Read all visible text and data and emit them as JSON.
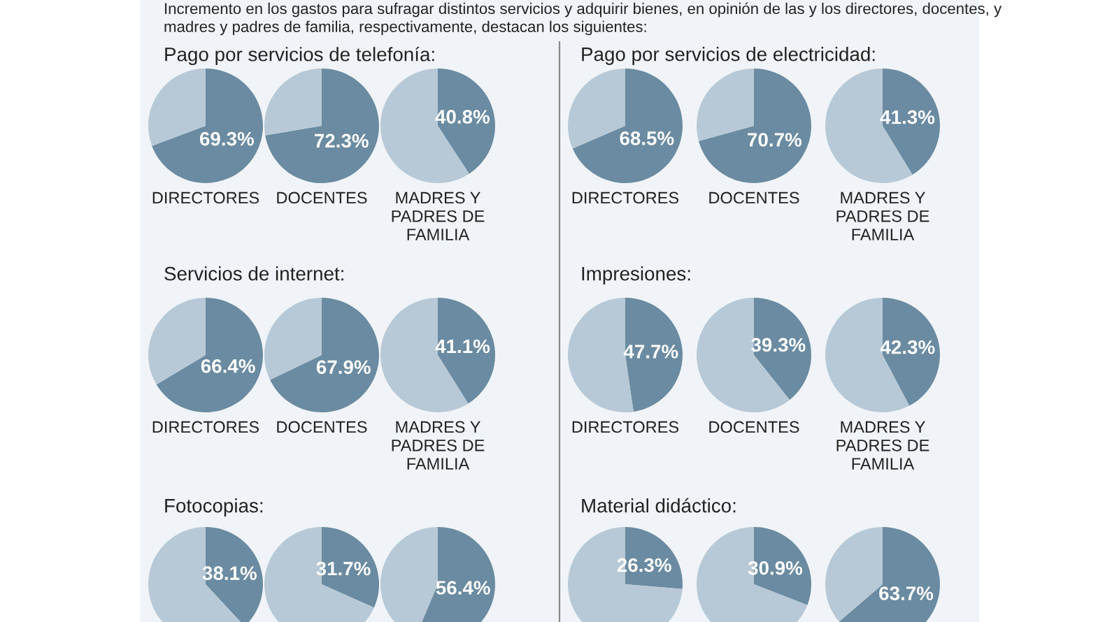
{
  "chart_data": [
    {
      "type": "other",
      "annotations": [
        "Incremento en los gastos para sufragar distintos servicios y adquirir bienes, en opinión de las y los directores, docentes, y",
        "madres y padres de familia, respectivamente, destacan los siguientes:"
      ]
    },
    {
      "type": "other",
      "title": "Pago por servicios de telefonía:"
    },
    {
      "type": "pie",
      "categories": [
        null,
        null
      ],
      "values": [
        69.3,
        30.7
      ],
      "colors": [
        "#6a8ba1",
        "#b7c9d6"
      ],
      "value_labels": [
        "69.3%",
        null
      ],
      "xlabel": "DIRECTORES"
    },
    {
      "type": "pie",
      "categories": [
        null,
        null
      ],
      "values": [
        72.3,
        27.7
      ],
      "colors": [
        "#6a8ba1",
        "#b7c9d6"
      ],
      "value_labels": [
        "72.3%",
        null
      ],
      "xlabel": "DOCENTES"
    },
    {
      "type": "pie",
      "categories": [
        null,
        null
      ],
      "values": [
        40.8,
        59.2
      ],
      "colors": [
        "#6a8ba1",
        "#b7c9d6"
      ],
      "value_labels": [
        "40.8%",
        null
      ],
      "xlabel": "MADRES Y\nPADRES DE\nFAMILIA"
    },
    {
      "type": "other",
      "title": "Pago por servicios de electricidad:"
    },
    {
      "type": "pie",
      "categories": [
        null,
        null
      ],
      "values": [
        68.5,
        31.5
      ],
      "colors": [
        "#6a8ba1",
        "#b7c9d6"
      ],
      "value_labels": [
        "68.5%",
        null
      ],
      "xlabel": "DIRECTORES"
    },
    {
      "type": "pie",
      "categories": [
        null,
        null
      ],
      "values": [
        70.7,
        29.3
      ],
      "colors": [
        "#6a8ba1",
        "#b7c9d6"
      ],
      "value_labels": [
        "70.7%",
        null
      ],
      "xlabel": "DOCENTES"
    },
    {
      "type": "pie",
      "categories": [
        null,
        null
      ],
      "values": [
        41.3,
        58.7
      ],
      "colors": [
        "#6a8ba1",
        "#b7c9d6"
      ],
      "value_labels": [
        "41.3%",
        null
      ],
      "xlabel": "MADRES Y\nPADRES DE\nFAMILIA"
    },
    {
      "type": "other",
      "title": "Servicios de internet:"
    },
    {
      "type": "pie",
      "categories": [
        null,
        null
      ],
      "values": [
        66.4,
        33.6
      ],
      "colors": [
        "#6a8ba1",
        "#b7c9d6"
      ],
      "value_labels": [
        "66.4%",
        null
      ],
      "xlabel": "DIRECTORES"
    },
    {
      "type": "pie",
      "categories": [
        null,
        null
      ],
      "values": [
        67.9,
        32.1
      ],
      "colors": [
        "#6a8ba1",
        "#b7c9d6"
      ],
      "value_labels": [
        "67.9%",
        null
      ],
      "xlabel": "DOCENTES"
    },
    {
      "type": "pie",
      "categories": [
        null,
        null
      ],
      "values": [
        41.1,
        58.9
      ],
      "colors": [
        "#6a8ba1",
        "#b7c9d6"
      ],
      "value_labels": [
        "41.1%",
        null
      ],
      "xlabel": "MADRES Y\nPADRES DE\nFAMILIA"
    },
    {
      "type": "other",
      "title": "Impresiones:"
    },
    {
      "type": "pie",
      "categories": [
        null,
        null
      ],
      "values": [
        47.7,
        52.3
      ],
      "colors": [
        "#6a8ba1",
        "#b7c9d6"
      ],
      "value_labels": [
        "47.7%",
        null
      ],
      "xlabel": "DIRECTORES"
    },
    {
      "type": "pie",
      "categories": [
        null,
        null
      ],
      "values": [
        39.3,
        60.7
      ],
      "colors": [
        "#6a8ba1",
        "#b7c9d6"
      ],
      "value_labels": [
        "39.3%",
        null
      ],
      "xlabel": "DOCENTES"
    },
    {
      "type": "pie",
      "categories": [
        null,
        null
      ],
      "values": [
        42.3,
        57.7
      ],
      "colors": [
        "#6a8ba1",
        "#b7c9d6"
      ],
      "value_labels": [
        "42.3%",
        null
      ],
      "xlabel": "MADRES Y\nPADRES DE\nFAMILIA"
    },
    {
      "type": "other",
      "title": "Fotocopias:"
    },
    {
      "type": "pie",
      "categories": [
        null,
        null
      ],
      "values": [
        38.1,
        61.9
      ],
      "colors": [
        "#6a8ba1",
        "#b7c9d6"
      ],
      "value_labels": [
        "38.1%",
        null
      ]
    },
    {
      "type": "pie",
      "categories": [
        null,
        null
      ],
      "values": [
        31.7,
        68.3
      ],
      "colors": [
        "#6a8ba1",
        "#b7c9d6"
      ],
      "value_labels": [
        "31.7%",
        null
      ]
    },
    {
      "type": "pie",
      "categories": [
        null,
        null
      ],
      "values": [
        56.4,
        43.6
      ],
      "colors": [
        "#6a8ba1",
        "#b7c9d6"
      ],
      "value_labels": [
        "56.4%",
        null
      ]
    },
    {
      "type": "other",
      "title": "Material didáctico:"
    },
    {
      "type": "pie",
      "categories": [
        null,
        null
      ],
      "values": [
        26.3,
        73.7
      ],
      "colors": [
        "#6a8ba1",
        "#b7c9d6"
      ],
      "value_labels": [
        "26.3%",
        null
      ]
    },
    {
      "type": "pie",
      "categories": [
        null,
        null
      ],
      "values": [
        30.9,
        69.1
      ],
      "colors": [
        "#6a8ba1",
        "#b7c9d6"
      ],
      "value_labels": [
        "30.9%",
        null
      ]
    },
    {
      "type": "pie",
      "categories": [
        null,
        null
      ],
      "values": [
        63.7,
        36.3
      ],
      "colors": [
        "#6a8ba1",
        "#b7c9d6"
      ],
      "value_labels": [
        "63.7%",
        null
      ]
    }
  ]
}
